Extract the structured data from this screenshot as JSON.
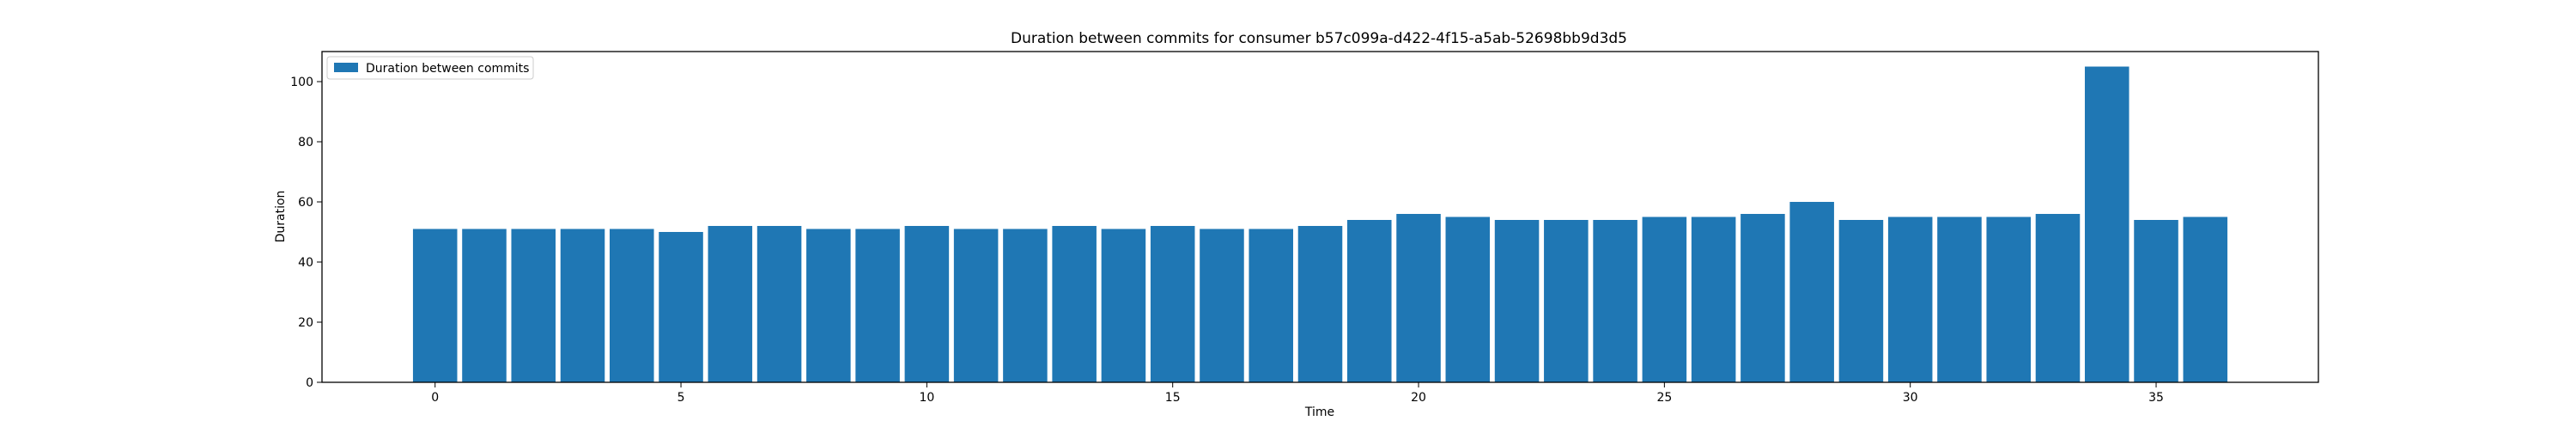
{
  "chart_data": {
    "type": "bar",
    "title": "Duration between commits for consumer b57c099a-d422-4f15-a5ab-52698bb9d3d5",
    "xlabel": "Time",
    "ylabel": "Duration",
    "xlim": [
      -2.3,
      38.3
    ],
    "ylim": [
      0,
      110
    ],
    "xticks": [
      0,
      5,
      10,
      15,
      20,
      25,
      30,
      35
    ],
    "yticks": [
      0,
      20,
      40,
      60,
      80,
      100
    ],
    "grid": false,
    "legend_position": "upper-left",
    "series": [
      {
        "name": "Duration between commits",
        "color": "#1f77b4",
        "x": [
          0,
          1,
          2,
          3,
          4,
          5,
          6,
          7,
          8,
          9,
          10,
          11,
          12,
          13,
          14,
          15,
          16,
          17,
          18,
          19,
          20,
          21,
          22,
          23,
          24,
          25,
          26,
          27,
          28,
          29,
          30,
          31,
          32,
          33,
          34,
          35,
          36
        ],
        "values": [
          51,
          51,
          51,
          51,
          51,
          50,
          52,
          52,
          51,
          51,
          52,
          51,
          51,
          52,
          51,
          52,
          51,
          51,
          52,
          54,
          56,
          55,
          54,
          54,
          54,
          55,
          55,
          56,
          60,
          54,
          55,
          55,
          55,
          56,
          105,
          54,
          55
        ]
      }
    ]
  }
}
